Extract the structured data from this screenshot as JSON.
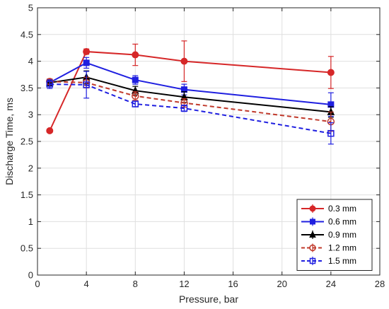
{
  "chart_data": {
    "type": "line",
    "xlabel": "Pressure, bar",
    "ylabel": "Discharge Time, ms",
    "xlim": [
      0,
      28
    ],
    "ylim": [
      0,
      5
    ],
    "xticks": [
      0,
      4,
      8,
      12,
      16,
      20,
      24,
      28
    ],
    "yticks": [
      0,
      0.5,
      1,
      1.5,
      2,
      2.5,
      3,
      3.5,
      4,
      4.5,
      5
    ],
    "xtick_labels": [
      "0",
      "4",
      "8",
      "12",
      "16",
      "20",
      "24",
      "28"
    ],
    "ytick_labels": [
      "0",
      "0.5",
      "1",
      "1.5",
      "2",
      "2.5",
      "3",
      "3.5",
      "4",
      "4.5",
      "5"
    ],
    "grid": true,
    "legend_position": "bottom-right",
    "x": [
      1,
      4,
      8,
      12,
      24
    ],
    "series": [
      {
        "name": "0.3 mm",
        "color": "#d62728",
        "line": "solid",
        "marker": "circle-filled",
        "values": [
          2.7,
          4.18,
          4.12,
          4.0,
          3.79
        ],
        "errors": [
          0.03,
          0.05,
          0.2,
          0.38,
          0.3
        ]
      },
      {
        "name": "0.6 mm",
        "color": "#1f1fe0",
        "line": "solid",
        "marker": "square-filled",
        "values": [
          3.6,
          3.97,
          3.65,
          3.47,
          3.19
        ],
        "errors": [
          0.06,
          0.1,
          0.08,
          0.1,
          0.22
        ]
      },
      {
        "name": "0.9 mm",
        "color": "#000000",
        "line": "solid",
        "marker": "triangle-filled",
        "values": [
          3.6,
          3.7,
          3.45,
          3.33,
          3.05
        ],
        "errors": [
          0.05,
          0.12,
          0.08,
          0.1,
          0.1
        ]
      },
      {
        "name": "1.2 mm",
        "color": "#c0392b",
        "line": "dashed",
        "marker": "circle-open",
        "values": [
          3.62,
          3.6,
          3.35,
          3.22,
          2.87
        ],
        "errors": [
          0.05,
          0.1,
          0.08,
          0.08,
          0.18
        ]
      },
      {
        "name": "1.5 mm",
        "color": "#1f1fe0",
        "line": "dashed",
        "marker": "square-open",
        "values": [
          3.57,
          3.56,
          3.2,
          3.12,
          2.65
        ],
        "errors": [
          0.08,
          0.25,
          0.05,
          0.06,
          0.2
        ]
      }
    ]
  }
}
